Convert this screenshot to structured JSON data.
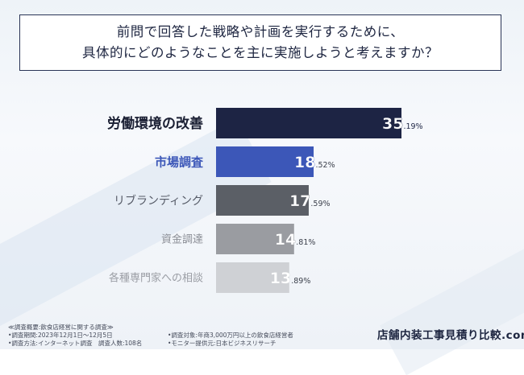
{
  "question": {
    "line1": "前問で回答した戦略や計画を実行するために、",
    "line2": "具体的にどのようなことを主に実施しようと考えますか？"
  },
  "chart_data": {
    "type": "bar",
    "orientation": "horizontal",
    "title": "",
    "xlabel": "",
    "ylabel": "",
    "categories": [
      "労働環境の改善",
      "市場調査",
      "リブランディング",
      "資金調達",
      "各種専門家への相談"
    ],
    "values": [
      35.19,
      18.52,
      17.59,
      14.81,
      13.89
    ],
    "value_labels": [
      {
        "int": "35",
        "dec": ".19%"
      },
      {
        "int": "18",
        "dec": ".52%"
      },
      {
        "int": "17",
        "dec": ".59%"
      },
      {
        "int": "14",
        "dec": ".81%"
      },
      {
        "int": "13",
        "dec": ".89%"
      }
    ],
    "bar_colors": [
      "#1d2444",
      "#3c57b8",
      "#5b5f66",
      "#9a9ca1",
      "#cfd1d5"
    ],
    "label_colors": [
      "#1a1f33",
      "#3c57b8",
      "#555a66",
      "#8a8d95",
      "#9a9da4"
    ],
    "xlim": [
      0,
      35.19
    ],
    "grid": false,
    "legend": "none"
  },
  "footer": {
    "notes_left": [
      "≪調査概要:飲食店経営に関する調査≫",
      "•調査期間:2023年12月1日〜12月5日",
      "•調査方法:インターネット調査　調査人数:108名"
    ],
    "notes_right": [
      "•調査対象:年商3,000万円以上の飲食店経営者",
      "•モニター提供元:日本ビジネスリサーチ"
    ],
    "brand": "店舗内装工事見積り比較.com"
  }
}
